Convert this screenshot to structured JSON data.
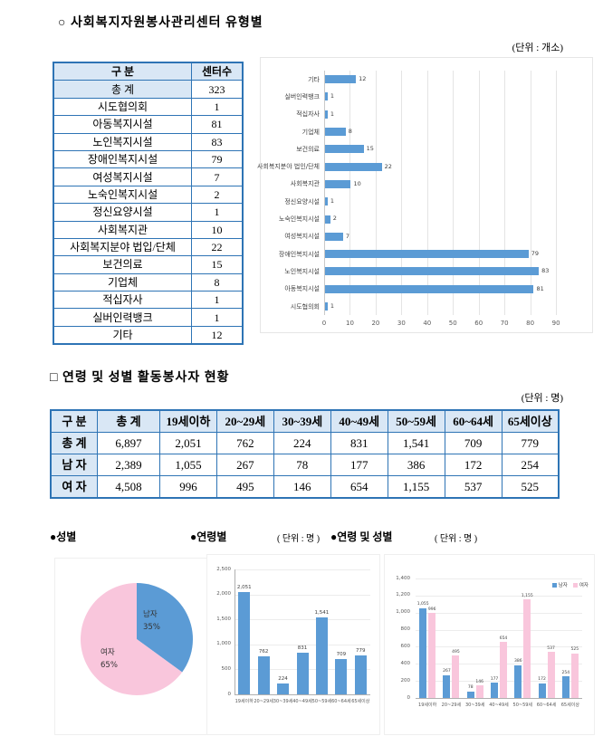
{
  "section1": {
    "title": "○ 사회복지자원봉사관리센터 유형별",
    "unit": "(단위 : 개소)",
    "table": {
      "headers": [
        "구   분",
        "센터수"
      ],
      "rows": [
        [
          "총   계",
          "323"
        ],
        [
          "시도협의회",
          "1"
        ],
        [
          "아동복지시설",
          "81"
        ],
        [
          "노인복지시설",
          "83"
        ],
        [
          "장애인복지시설",
          "79"
        ],
        [
          "여성복지시설",
          "7"
        ],
        [
          "노숙인복지시설",
          "2"
        ],
        [
          "정신요양시설",
          "1"
        ],
        [
          "사회복지관",
          "10"
        ],
        [
          "사회복지분야 법입/단체",
          "22"
        ],
        [
          "보건의료",
          "15"
        ],
        [
          "기업체",
          "8"
        ],
        [
          "적십자사",
          "1"
        ],
        [
          "실버인력뱅크",
          "1"
        ],
        [
          "기타",
          "12"
        ]
      ]
    }
  },
  "section2": {
    "title": "□ 연령 및 성별 활동봉사자 현황",
    "unit": "(단위 : 명)",
    "table": {
      "headers": [
        "구 분",
        "총 계",
        "19세이하",
        "20~29세",
        "30~39세",
        "40~49세",
        "50~59세",
        "60~64세",
        "65세이상"
      ],
      "rows": [
        [
          "총 계",
          "6,897",
          "2,051",
          "762",
          "224",
          "831",
          "1,541",
          "709",
          "779"
        ],
        [
          "남 자",
          "2,389",
          "1,055",
          "267",
          "78",
          "177",
          "386",
          "172",
          "254"
        ],
        [
          "여 자",
          "4,508",
          "996",
          "495",
          "146",
          "654",
          "1,155",
          "537",
          "525"
        ]
      ]
    }
  },
  "bottom": {
    "gender_title": "●성별",
    "age_title": "●연령별",
    "age_unit": "( 단위 : 명 )",
    "agegender_title": "●연령 및 성별",
    "agegender_unit": "( 단위 : 명 )"
  },
  "colors": {
    "bar_blue": "#5b9bd5",
    "pink": "#f9c6dc",
    "table_border": "#2e74b5",
    "header_fill": "#d9e7f5"
  },
  "chart_data": [
    {
      "type": "bar",
      "orientation": "horizontal",
      "title": "사회복지자원봉사관리센터 유형별",
      "unit": "개소",
      "categories": [
        "기타",
        "실버인력뱅크",
        "적십자사",
        "기업체",
        "보건의료",
        "사회복지분야 법인/단체",
        "사회복지관",
        "정신요양시설",
        "노숙인복지시설",
        "여성복지시설",
        "장애인복지시설",
        "노인복지시설",
        "아동복지시설",
        "시도협의회"
      ],
      "values": [
        12,
        1,
        1,
        8,
        15,
        22,
        10,
        1,
        2,
        7,
        79,
        83,
        81,
        1
      ],
      "xlim": [
        0,
        90
      ],
      "xticks": [
        0,
        10,
        20,
        30,
        40,
        50,
        60,
        70,
        80,
        90
      ],
      "grid": true,
      "legend": false
    },
    {
      "type": "pie",
      "title": "성별",
      "labels": [
        "남자",
        "여자"
      ],
      "values": [
        35,
        65
      ],
      "value_labels": [
        "35%",
        "65%"
      ],
      "colors": [
        "#5b9bd5",
        "#f9c6dc"
      ]
    },
    {
      "type": "bar",
      "title": "연령별",
      "unit": "명",
      "categories": [
        "19세이하",
        "20~29세",
        "30~39세",
        "40~49세",
        "50~59세",
        "60~64세",
        "65세이상"
      ],
      "values": [
        2051,
        762,
        224,
        831,
        1541,
        709,
        779
      ],
      "value_labels": [
        "2,051",
        "762",
        "224",
        "831",
        "1,541",
        "709",
        "779"
      ],
      "ylim": [
        0,
        2500
      ],
      "yticks": [
        "0",
        "500",
        "1,000",
        "1,500",
        "2,000",
        "2,500"
      ],
      "grid": true,
      "legend": false
    },
    {
      "type": "bar",
      "grouped": true,
      "title": "연령 및 성별",
      "unit": "명",
      "categories": [
        "19세이하",
        "20~29세",
        "30~39세",
        "40~49세",
        "50~59세",
        "60~64세",
        "65세이상"
      ],
      "series": [
        {
          "name": "남자",
          "color": "#5b9bd5",
          "values": [
            1055,
            267,
            78,
            177,
            386,
            172,
            254
          ],
          "value_labels": [
            "1,055",
            "267",
            "78",
            "177",
            "386",
            "172",
            "254"
          ]
        },
        {
          "name": "여자",
          "color": "#f9c6dc",
          "values": [
            996,
            495,
            146,
            654,
            1155,
            537,
            525
          ],
          "value_labels": [
            "996",
            "495",
            "146",
            "654",
            "1,155",
            "537",
            "525"
          ]
        }
      ],
      "ylim": [
        0,
        1400
      ],
      "yticks": [
        "0",
        "200",
        "400",
        "600",
        "800",
        "1,000",
        "1,200",
        "1,400"
      ],
      "grid": true,
      "legend_position": "top-right"
    }
  ]
}
